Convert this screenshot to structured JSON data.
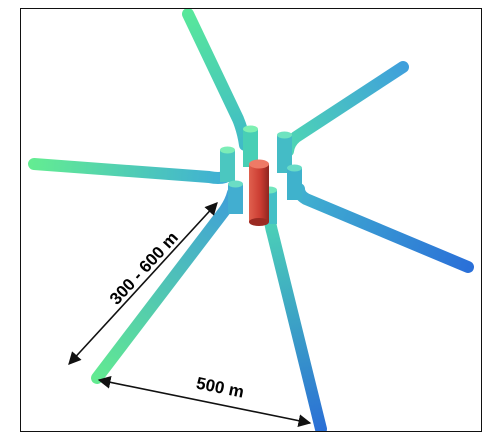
{
  "labels": {
    "spacing_diagonal": "300 - 600 m",
    "spacing_horizontal": "500 m"
  },
  "colors": {
    "pipe_start": "#4fe3a0",
    "pipe_end": "#2a7fd8",
    "central_well": "#d9483a",
    "arrow": "#111111",
    "border": "#111111"
  }
}
